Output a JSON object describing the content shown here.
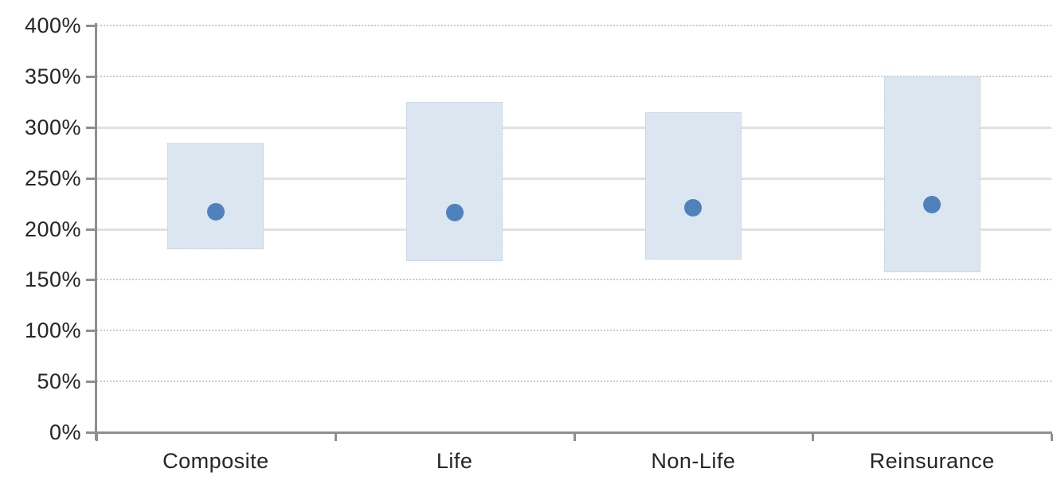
{
  "chart_data": {
    "type": "bar",
    "subtype": "floating-range-bar-with-dot-marker",
    "title": "",
    "categories": [
      "Composite",
      "Life",
      "Non-Life",
      "Reinsurance"
    ],
    "series": [
      {
        "name": "range",
        "low": [
          180,
          168,
          170,
          157
        ],
        "high": [
          284,
          325,
          315,
          350
        ]
      },
      {
        "name": "dot",
        "values": [
          217,
          216,
          221,
          224
        ]
      }
    ],
    "xlabel": "",
    "ylabel": "",
    "y_unit": "%",
    "ylim": [
      0,
      400
    ],
    "ytick_step": 50,
    "ytick_values": [
      0,
      50,
      100,
      150,
      200,
      250,
      300,
      350,
      400
    ],
    "ytick_labels": [
      "0%",
      "50%",
      "100%",
      "150%",
      "200%",
      "250%",
      "300%",
      "350%",
      "400%"
    ],
    "legend": "none",
    "grid": "horizontal",
    "gridline_styles": {
      "dotted_at": [
        50,
        100,
        150,
        350,
        400
      ],
      "solid_at": [
        200,
        250,
        300
      ]
    },
    "colors": {
      "background": "#ffffff",
      "bar_fill": "#dce6f1",
      "bar_border": "#bccbdd",
      "dot": "#4f81bd",
      "axis": "#8f8f8f",
      "grid_dotted": "#c9c9c9",
      "grid_solid": "#e1e1e1",
      "text": "#262626"
    }
  }
}
